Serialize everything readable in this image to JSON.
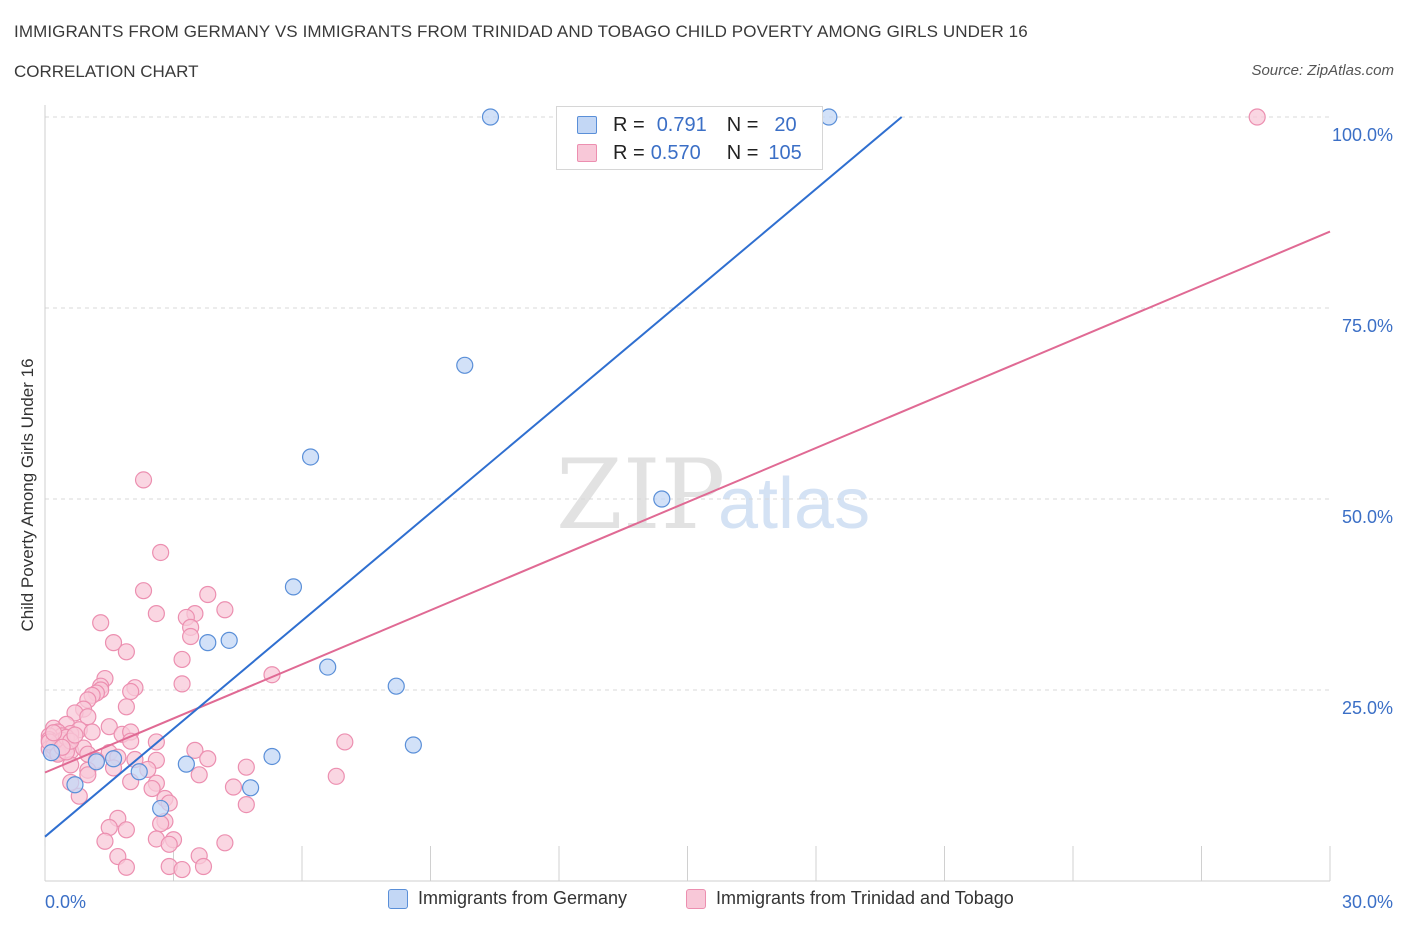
{
  "title": "IMMIGRANTS FROM GERMANY VS IMMIGRANTS FROM TRINIDAD AND TOBAGO CHILD POVERTY AMONG GIRLS UNDER 16",
  "subtitle": "CORRELATION CHART",
  "source": "Source: ZipAtlas.com",
  "watermark": {
    "part1": "ZIP",
    "part2": "atlas"
  },
  "legend": {
    "r_label": "R =",
    "n_label": "N =",
    "rows": [
      {
        "r": "0.791",
        "n": "20"
      },
      {
        "r": "0.570",
        "n": "105"
      }
    ]
  },
  "colors": {
    "germany_fill": "#c3d7f5",
    "germany_stroke": "#5a8fd8",
    "germany_line": "#2f6fd0",
    "trinidad_fill": "#f8c8d8",
    "trinidad_stroke": "#ec8fb0",
    "trinidad_line": "#e06a94",
    "tick_label": "#3b6fc6",
    "grid": "#d8d8d8"
  },
  "chart_data": {
    "type": "scatter",
    "xlabel": "",
    "ylabel": "Child Poverty Among Girls Under 16",
    "xlim": [
      0,
      30
    ],
    "ylim": [
      0,
      100
    ],
    "x_tick_labels": [
      {
        "value": 0,
        "label": "0.0%"
      },
      {
        "value": 30,
        "label": "30.0%"
      }
    ],
    "y_tick_labels": [
      {
        "value": 25,
        "label": "25.0%"
      },
      {
        "value": 50,
        "label": "50.0%"
      },
      {
        "value": 75,
        "label": "75.0%"
      },
      {
        "value": 100,
        "label": "100.0%"
      }
    ],
    "grid": true,
    "legend_position": "top-center",
    "series": [
      {
        "name": "Immigrants from Germany",
        "points": [
          [
            10.4,
            100
          ],
          [
            18.3,
            100
          ],
          [
            9.8,
            67.5
          ],
          [
            6.2,
            55.5
          ],
          [
            14.4,
            50.0
          ],
          [
            5.8,
            38.5
          ],
          [
            4.3,
            31.5
          ],
          [
            3.8,
            31.2
          ],
          [
            6.6,
            28.0
          ],
          [
            8.2,
            25.5
          ],
          [
            8.6,
            17.8
          ],
          [
            5.3,
            16.3
          ],
          [
            3.3,
            15.3
          ],
          [
            1.2,
            15.6
          ],
          [
            2.2,
            14.3
          ],
          [
            4.8,
            12.2
          ],
          [
            0.7,
            12.6
          ],
          [
            2.7,
            9.5
          ],
          [
            0.15,
            16.8
          ],
          [
            1.6,
            16.0
          ]
        ],
        "trendline": {
          "x": [
            0,
            20.0
          ],
          "y": [
            5.8,
            100
          ]
        }
      },
      {
        "name": "Immigrants from Trinidad and Tobago",
        "points": [
          [
            28.3,
            100
          ],
          [
            2.3,
            52.5
          ],
          [
            2.7,
            43.0
          ],
          [
            2.3,
            38.0
          ],
          [
            3.8,
            37.5
          ],
          [
            4.2,
            35.5
          ],
          [
            2.6,
            35.0
          ],
          [
            3.5,
            35.0
          ],
          [
            3.3,
            34.5
          ],
          [
            1.3,
            33.8
          ],
          [
            3.4,
            33.2
          ],
          [
            3.4,
            32.0
          ],
          [
            1.6,
            31.2
          ],
          [
            1.9,
            30.0
          ],
          [
            3.2,
            29.0
          ],
          [
            5.3,
            27.0
          ],
          [
            1.4,
            26.5
          ],
          [
            3.2,
            25.8
          ],
          [
            1.3,
            25.5
          ],
          [
            2.1,
            25.3
          ],
          [
            1.3,
            25.0
          ],
          [
            2.0,
            24.8
          ],
          [
            1.2,
            24.6
          ],
          [
            1.1,
            24.3
          ],
          [
            1.0,
            23.7
          ],
          [
            1.9,
            22.8
          ],
          [
            0.9,
            22.5
          ],
          [
            0.7,
            22.0
          ],
          [
            1.0,
            21.5
          ],
          [
            0.5,
            20.5
          ],
          [
            0.2,
            20.0
          ],
          [
            1.5,
            20.2
          ],
          [
            0.8,
            19.8
          ],
          [
            0.3,
            19.5
          ],
          [
            0.6,
            19.3
          ],
          [
            1.1,
            19.5
          ],
          [
            1.8,
            19.2
          ],
          [
            2.0,
            19.5
          ],
          [
            0.4,
            19.0
          ],
          [
            0.1,
            19.0
          ],
          [
            0.1,
            18.5
          ],
          [
            0.2,
            18.2
          ],
          [
            0.3,
            18.0
          ],
          [
            0.4,
            17.8
          ],
          [
            0.5,
            17.6
          ],
          [
            0.1,
            17.3
          ],
          [
            0.2,
            17.0
          ],
          [
            0.3,
            16.8
          ],
          [
            0.6,
            17.0
          ],
          [
            0.9,
            17.4
          ],
          [
            1.0,
            16.6
          ],
          [
            1.5,
            16.8
          ],
          [
            2.0,
            18.3
          ],
          [
            2.6,
            18.2
          ],
          [
            7.0,
            18.2
          ],
          [
            3.5,
            17.1
          ],
          [
            1.2,
            15.8
          ],
          [
            1.7,
            16.2
          ],
          [
            2.1,
            15.9
          ],
          [
            2.6,
            15.8
          ],
          [
            3.8,
            16.0
          ],
          [
            0.6,
            15.2
          ],
          [
            1.0,
            14.5
          ],
          [
            1.6,
            14.8
          ],
          [
            2.4,
            14.6
          ],
          [
            4.7,
            14.9
          ],
          [
            6.8,
            13.7
          ],
          [
            3.6,
            13.9
          ],
          [
            1.0,
            13.9
          ],
          [
            0.6,
            12.9
          ],
          [
            2.0,
            13.0
          ],
          [
            2.6,
            12.8
          ],
          [
            4.4,
            12.3
          ],
          [
            2.5,
            12.1
          ],
          [
            0.8,
            11.1
          ],
          [
            2.8,
            10.8
          ],
          [
            2.9,
            10.2
          ],
          [
            4.7,
            10.0
          ],
          [
            2.8,
            7.8
          ],
          [
            1.7,
            8.2
          ],
          [
            2.7,
            7.5
          ],
          [
            1.5,
            7.0
          ],
          [
            1.9,
            6.7
          ],
          [
            2.6,
            5.5
          ],
          [
            3.0,
            5.4
          ],
          [
            1.4,
            5.2
          ],
          [
            4.2,
            5.0
          ],
          [
            2.9,
            4.8
          ],
          [
            1.7,
            3.2
          ],
          [
            3.6,
            3.3
          ],
          [
            1.9,
            1.8
          ],
          [
            2.9,
            1.9
          ],
          [
            3.2,
            1.5
          ],
          [
            3.7,
            1.9
          ],
          [
            0.2,
            17.6
          ],
          [
            0.3,
            17.2
          ],
          [
            0.4,
            18.4
          ],
          [
            0.5,
            18.8
          ],
          [
            0.1,
            18.2
          ],
          [
            0.2,
            19.4
          ],
          [
            0.3,
            16.6
          ],
          [
            0.5,
            16.9
          ],
          [
            0.6,
            18.3
          ],
          [
            0.7,
            19.1
          ],
          [
            0.4,
            17.5
          ]
        ],
        "trendline": {
          "x": [
            0,
            30.0
          ],
          "y": [
            14.2,
            85.0
          ]
        }
      }
    ]
  }
}
